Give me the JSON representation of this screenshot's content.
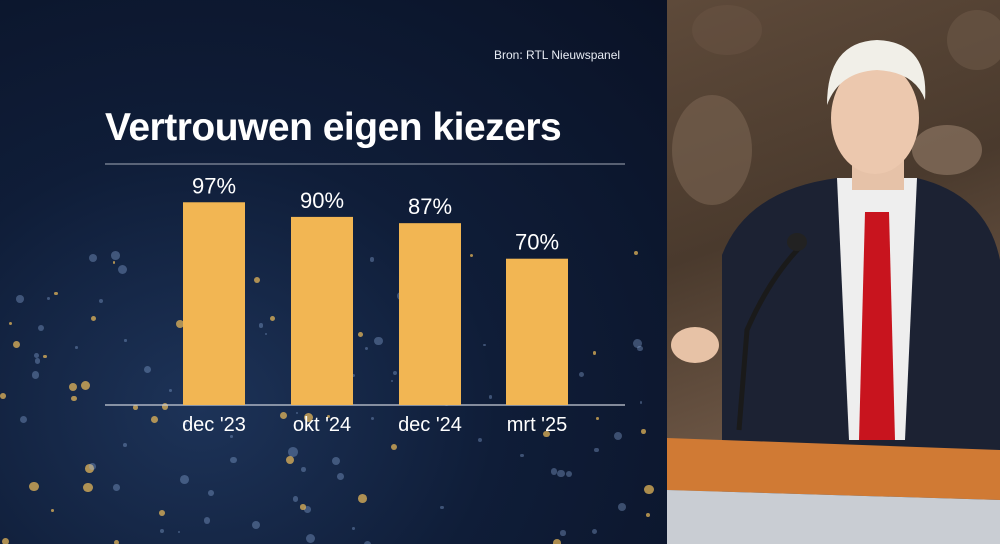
{
  "source_label": "Bron: RTL Nieuwspanel",
  "chart_data": {
    "type": "bar",
    "title": "Vertrouwen eigen kiezers",
    "categories": [
      "dec '23",
      "okt '24",
      "dec '24",
      "mrt '25"
    ],
    "values": [
      97,
      90,
      87,
      70
    ],
    "data_labels": [
      "97%",
      "90%",
      "87%",
      "70%"
    ],
    "xlabel": "",
    "ylabel": "",
    "ylim": [
      0,
      100
    ],
    "grid": false,
    "colors": {
      "bar": "#f2b653",
      "axis": "#c9ced8",
      "text": "#ffffff"
    }
  },
  "theme": {
    "background": "#0f1d38",
    "accent": "#f2b653"
  }
}
